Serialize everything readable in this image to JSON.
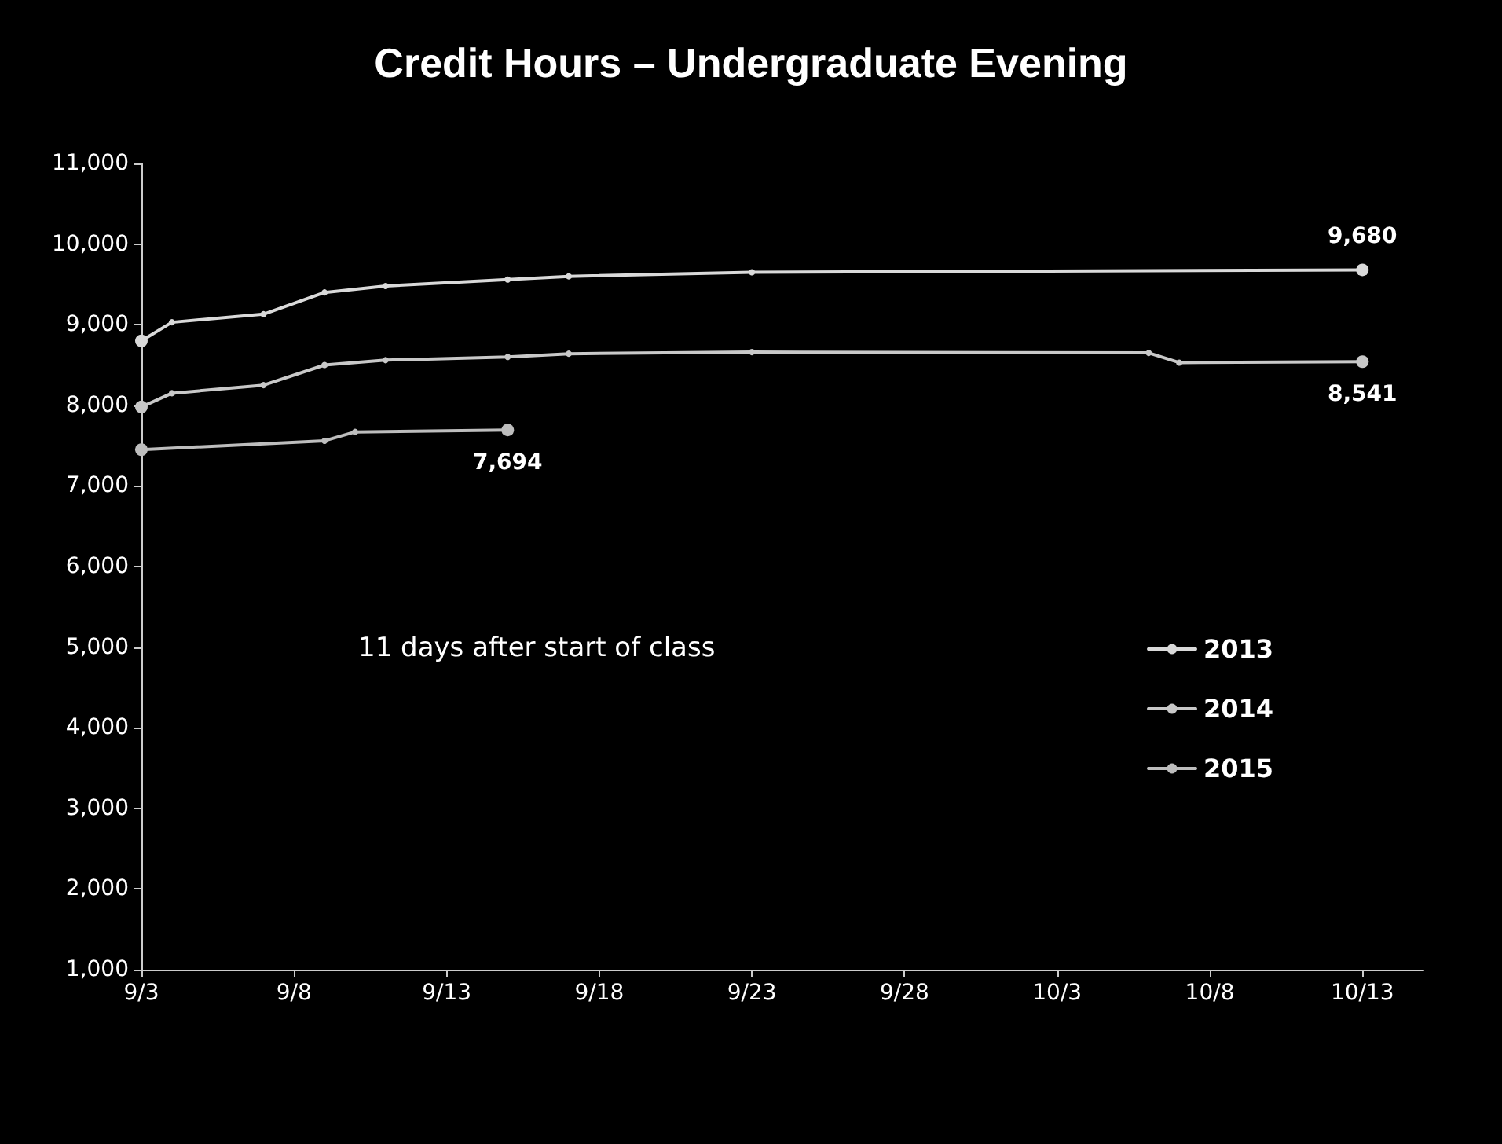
{
  "chart_data": {
    "type": "line",
    "title": "Credit Hours – Undergraduate Evening",
    "annotations": [
      "11 days after start of class"
    ],
    "series": [
      {
        "name": "2013",
        "color": "#d9d9d9",
        "x": [
          "--09-03",
          "--09-04",
          "--09-07",
          "--09-09",
          "--09-11",
          "--09-15",
          "--09-17",
          "--09-23",
          "--10-13"
        ],
        "values": [
          8800,
          9030,
          9130,
          9400,
          9480,
          9560,
          9600,
          9650,
          9680
        ],
        "value_labels": [
          null,
          null,
          null,
          null,
          null,
          null,
          null,
          null,
          "9,680"
        ]
      },
      {
        "name": "2014",
        "color": "#c8c8c8",
        "x": [
          "--09-03",
          "--09-04",
          "--09-07",
          "--09-09",
          "--09-11",
          "--09-15",
          "--09-17",
          "--09-23",
          "--10-06",
          "--10-07",
          "--10-13"
        ],
        "values": [
          7980,
          8150,
          8250,
          8500,
          8560,
          8600,
          8640,
          8660,
          8650,
          8530,
          8541
        ],
        "value_labels": [
          null,
          null,
          null,
          null,
          null,
          null,
          null,
          null,
          null,
          null,
          "8,541"
        ]
      },
      {
        "name": "2015",
        "color": "#bdbdbd",
        "x": [
          "--09-03",
          "--09-09",
          "--09-10",
          "--09-15"
        ],
        "values": [
          7450,
          7560,
          7670,
          7694
        ],
        "value_labels": [
          null,
          null,
          null,
          "7,694"
        ]
      }
    ],
    "xlim": [
      "--09-03",
      "--10-15"
    ],
    "xticks": [
      {
        "value": "--09-03",
        "label": "9/3"
      },
      {
        "value": "--09-08",
        "label": "9/8"
      },
      {
        "value": "--09-13",
        "label": "9/13"
      },
      {
        "value": "--09-18",
        "label": "9/18"
      },
      {
        "value": "--09-23",
        "label": "9/23"
      },
      {
        "value": "--09-28",
        "label": "9/28"
      },
      {
        "value": "--10-03",
        "label": "10/3"
      },
      {
        "value": "--10-08",
        "label": "10/8"
      },
      {
        "value": "--10-13",
        "label": "10/13"
      }
    ],
    "ylim": [
      1000,
      11000
    ],
    "yticks": [
      {
        "value": 1000,
        "label": "1,000"
      },
      {
        "value": 2000,
        "label": "2,000"
      },
      {
        "value": 3000,
        "label": "3,000"
      },
      {
        "value": 4000,
        "label": "4,000"
      },
      {
        "value": 5000,
        "label": "5,000"
      },
      {
        "value": 6000,
        "label": "6,000"
      },
      {
        "value": 7000,
        "label": "7,000"
      },
      {
        "value": 8000,
        "label": "8,000"
      },
      {
        "value": 9000,
        "label": "9,000"
      },
      {
        "value": 10000,
        "label": "10,000"
      },
      {
        "value": 11000,
        "label": "11,000"
      }
    ],
    "grid": false,
    "legend": "bottom right",
    "marker": "circle",
    "line_style": "solid"
  }
}
